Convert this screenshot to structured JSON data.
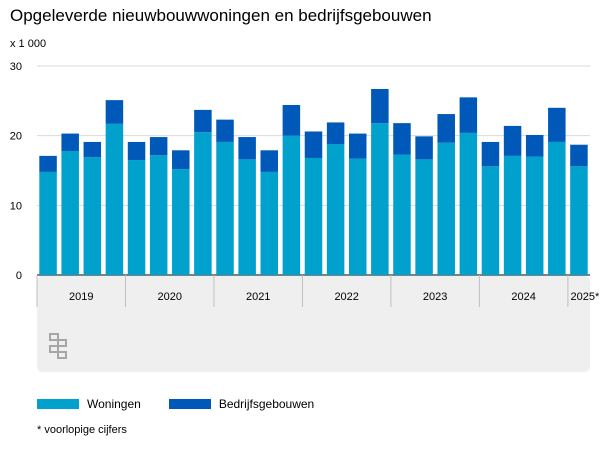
{
  "title": "Opgeleverde nieuwbouwwoningen en bedrijfsgebouwen",
  "unit_label": "x 1 000",
  "footnote": "* voorlopige cijfers",
  "colors": {
    "woningen": "#00a1cd",
    "bedrijfsgebouwen": "#0058b8",
    "band": "#efefef"
  },
  "chart_data": {
    "type": "bar",
    "stacked": true,
    "ylim": [
      0,
      30
    ],
    "yticks": [
      0,
      10,
      20,
      30
    ],
    "grid": true,
    "legend_position": "bottom-left",
    "x": [
      "2019 Q1",
      "2019 Q2",
      "2019 Q3",
      "2019 Q4",
      "2020 Q1",
      "2020 Q2",
      "2020 Q3",
      "2020 Q4",
      "2021 Q1",
      "2021 Q2",
      "2021 Q3",
      "2021 Q4",
      "2022 Q1",
      "2022 Q2",
      "2022 Q3",
      "2022 Q4",
      "2023 Q1",
      "2023 Q2",
      "2023 Q3",
      "2023 Q4",
      "2024 Q1",
      "2024 Q2",
      "2024 Q3",
      "2024 Q4",
      "2025 Q1"
    ],
    "year_labels": [
      "2019",
      "2020",
      "2021",
      "2022",
      "2023",
      "2024",
      "2025*"
    ],
    "series": [
      {
        "name": "Woningen",
        "values": [
          14.8,
          17.8,
          16.9,
          21.7,
          16.5,
          17.2,
          15.2,
          20.5,
          19.1,
          16.6,
          14.8,
          20.0,
          16.8,
          18.8,
          16.7,
          21.8,
          17.3,
          16.6,
          19.0,
          20.4,
          15.6,
          17.1,
          17.0,
          19.1,
          15.6
        ]
      },
      {
        "name": "Bedrijfsgebouwen",
        "values": [
          2.3,
          2.5,
          2.2,
          3.4,
          2.6,
          2.6,
          2.7,
          3.2,
          3.2,
          3.2,
          3.1,
          4.4,
          3.8,
          3.1,
          3.6,
          4.9,
          4.5,
          3.3,
          4.1,
          5.1,
          3.5,
          4.3,
          3.1,
          4.9,
          3.1
        ]
      }
    ]
  }
}
